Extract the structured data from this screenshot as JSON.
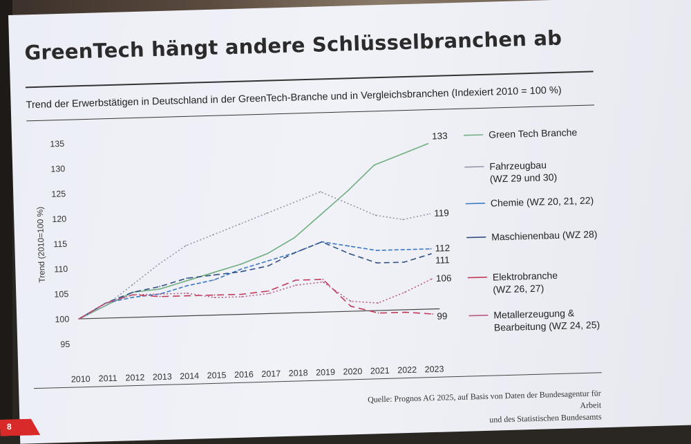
{
  "slide": {
    "title": "GreenTech hängt andere Schlüsselbranchen ab",
    "subtitle": "Trend der Erwerbstätigen in Deutschland in der GreenTech-Branche und in Vergleichsbranchen (Indexiert 2010 = 100 %)",
    "source_line1": "Quelle: Prognos AG 2025, auf Basis von Daten der Bundesagentur für Arbeit",
    "source_line2": "und des Statistischen Bundesamts",
    "page_number": "8"
  },
  "colors": {
    "accent": "#d92a2a",
    "green_tech": "#6fae7e",
    "fahrzeugbau": "#9096a8",
    "chemie": "#3a78c4",
    "maschinenbau": "#2f4f80",
    "elektro": "#c23a5a",
    "metall": "#b65a86",
    "text": "#2b2b2b"
  },
  "chart_data": {
    "type": "line",
    "ylabel": "Trend (2010=100 %)",
    "ylim": [
      95,
      135
    ],
    "yticks": [
      "95",
      "100",
      "105",
      "110",
      "115",
      "120",
      "125",
      "130",
      "135"
    ],
    "x": [
      "2010",
      "2011",
      "2012",
      "2013",
      "2014",
      "2015",
      "2016",
      "2017",
      "2018",
      "2019",
      "2020",
      "2021",
      "2022",
      "2023"
    ],
    "legend_position": "right",
    "grid": false,
    "series": [
      {
        "name": "Green Tech Branche",
        "color": "#6fae7e",
        "dash": "",
        "values": [
          100,
          102.5,
          105,
          105.5,
          107,
          108.5,
          110,
          112,
          115,
          119.5,
          124,
          129,
          131,
          133
        ],
        "end_label": "133"
      },
      {
        "name": "Fahrzeugbau\n(WZ 29 und 30)",
        "color": "#9096a8",
        "dash": "2 3",
        "values": [
          100,
          102.5,
          106.5,
          110.5,
          114,
          116,
          118,
          120,
          122,
          124,
          121.5,
          119,
          118,
          119
        ],
        "end_label": "119"
      },
      {
        "name": "Chemie (WZ 20, 21, 22)",
        "color": "#3a78c4",
        "dash": "6 3",
        "values": [
          100,
          103,
          104,
          104.5,
          106,
          107,
          109,
          110.5,
          112,
          114,
          113,
          112,
          112,
          112
        ],
        "end_label": "112"
      },
      {
        "name": "Maschienenbau (WZ 28)",
        "color": "#2f4f80",
        "dash": "8 5",
        "values": [
          100,
          103,
          105,
          106,
          107.5,
          108,
          108.5,
          109.5,
          112,
          114,
          111.5,
          109.5,
          109.5,
          111
        ],
        "end_label": "111"
      },
      {
        "name": "Elektrobranche\n(WZ 26, 27)",
        "color": "#c23a5a",
        "dash": "10 6",
        "values": [
          100,
          103,
          104.5,
          104,
          104,
          104,
          104,
          104.5,
          106.5,
          106.5,
          101,
          99.5,
          99.5,
          99
        ],
        "end_label": "99"
      },
      {
        "name": "Metallerzeugung &\nBearbeitung (WZ 24, 25)",
        "color": "#b65a86",
        "dash": "2 3",
        "values": [
          100,
          103,
          104.5,
          104.5,
          104.5,
          103.5,
          103.5,
          104,
          105.5,
          106,
          102,
          101.5,
          103.5,
          106
        ],
        "end_label": "106"
      }
    ]
  }
}
